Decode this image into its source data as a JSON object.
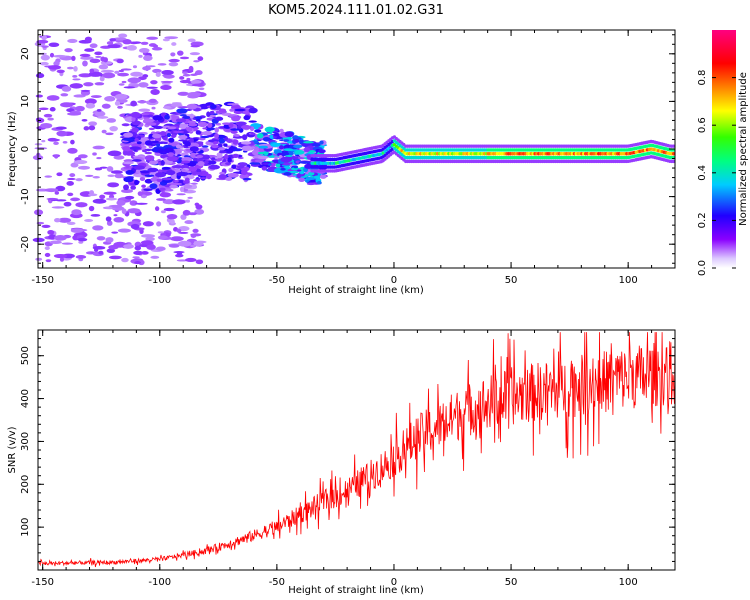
{
  "title": "KOM5.2024.111.01.02.G31",
  "chart_data": [
    {
      "type": "heatmap",
      "xlabel": "Height of straight line (km)",
      "ylabel": "Frequency (Hz)",
      "xlim": [
        -152,
        120
      ],
      "ylim": [
        -25,
        25
      ],
      "x_ticks": [
        -150,
        -100,
        -50,
        0,
        50,
        100
      ],
      "y_ticks": [
        -20,
        -10,
        0,
        10,
        20
      ],
      "colorbar": {
        "label": "Normalized spectral amplitude",
        "range": [
          0,
          1
        ],
        "ticks": [
          0.0,
          0.2,
          0.4,
          0.6,
          0.8
        ],
        "colormap": "rainbow (violet to red)"
      },
      "ridge_center_hz": {
        "x": [
          -120,
          -100,
          -80,
          -60,
          -45,
          -35,
          -25,
          -15,
          -5,
          0,
          5,
          10,
          20,
          40,
          60,
          80,
          100,
          110,
          118
        ],
        "y": [
          0,
          -1,
          2,
          1,
          -1,
          -3,
          -3,
          -2,
          -1,
          1,
          -1,
          -1,
          -1,
          -1,
          -1,
          -1,
          -1,
          0,
          -1
        ]
      }
    },
    {
      "type": "line",
      "xlabel": "Height of straight line (km)",
      "ylabel": "SNR (v/v)",
      "xlim": [
        -152,
        120
      ],
      "ylim": [
        0,
        560
      ],
      "x_ticks": [
        -150,
        -100,
        -50,
        0,
        50,
        100
      ],
      "y_ticks": [
        100,
        200,
        300,
        400,
        500
      ],
      "color": "#ff0000",
      "trend": {
        "x": [
          -152,
          -120,
          -100,
          -80,
          -60,
          -50,
          -40,
          -30,
          -20,
          -10,
          0,
          10,
          20,
          30,
          40,
          50,
          60,
          80,
          100,
          120
        ],
        "y": [
          15,
          18,
          25,
          45,
          80,
          100,
          130,
          160,
          185,
          220,
          260,
          310,
          340,
          370,
          390,
          405,
          415,
          430,
          450,
          460
        ]
      }
    }
  ]
}
